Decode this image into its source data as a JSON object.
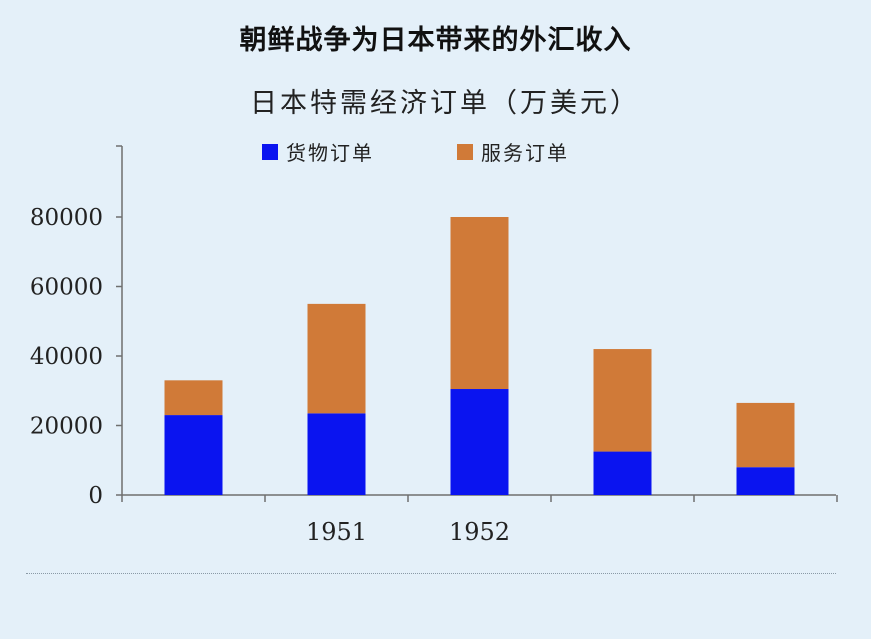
{
  "page": {
    "headline": "朝鲜战争为日本带来的外汇收入",
    "background_color": "#e4f0f9"
  },
  "chart_data": {
    "type": "bar",
    "stacked": true,
    "title": "日本特需经济订单（万美元）",
    "categories": [
      "",
      "1951",
      "1952",
      "",
      ""
    ],
    "series": [
      {
        "name": "货物订单",
        "color": "#0a14f0",
        "values": [
          23000,
          23500,
          30500,
          12500,
          8000
        ]
      },
      {
        "name": "服务订单",
        "color": "#d07a38",
        "values": [
          10000,
          31500,
          49500,
          29500,
          18500
        ]
      }
    ],
    "ylim": [
      0,
      100000
    ],
    "yticks": [
      0,
      20000,
      40000,
      60000,
      80000
    ],
    "xlabel": "",
    "ylabel": "",
    "grid": false,
    "legend": "top-center"
  }
}
